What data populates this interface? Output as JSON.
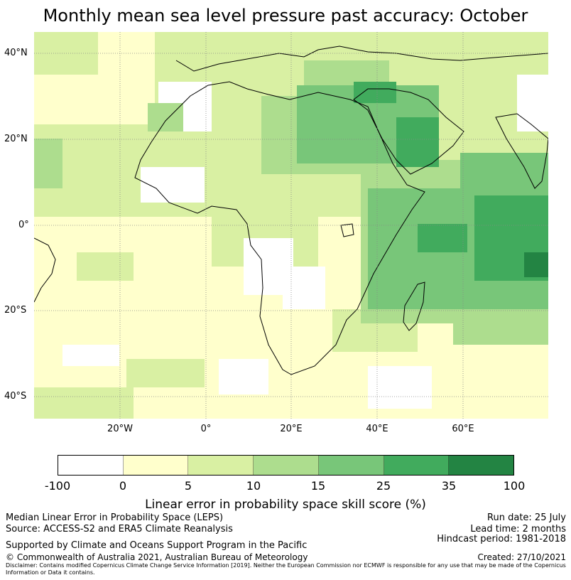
{
  "title": "Monthly mean sea level pressure past accuracy: October",
  "map": {
    "lat_labels": [
      "40°N",
      "20°N",
      "0°",
      "20°S",
      "40°S"
    ],
    "lon_labels": [
      "20°W",
      "0°",
      "20°E",
      "40°E",
      "60°E"
    ],
    "lon_range": [
      -40,
      80
    ],
    "lat_range": [
      -45,
      45
    ],
    "gridlines": true
  },
  "colorbar": {
    "colors": [
      "#ffffff",
      "#ffffcc",
      "#d9f0a3",
      "#addd8e",
      "#78c679",
      "#41ab5d",
      "#238443"
    ],
    "ticks": [
      "-100",
      "0",
      "5",
      "10",
      "15",
      "25",
      "35",
      "100"
    ],
    "label": "Linear error in probability space skill score (%)"
  },
  "footer": {
    "left_line1": "Median Linear Error in Probability Space (LEPS)",
    "left_line2": "Source: ACCESS-S2 and ERA5 Climate Reanalysis",
    "left_line3": "Supported by Climate and Oceans Support Program in the Pacific",
    "left_line4": "© Commonwealth of Australia 2021, Australian Bureau of Meteorology",
    "right_line1": "Run date: 25 July",
    "right_line2": "Lead time: 2 months",
    "right_line3": "Hindcast period: 1981-2018",
    "right_line4": "Created: 27/10/2021",
    "disclaimer": "Disclaimer: Contains modified Copernicus Climate Change Service Information [2019]. Neither the European Commission nor ECMWF is responsible for any use that may be made of the Copernicus Information or Data it contains."
  }
}
